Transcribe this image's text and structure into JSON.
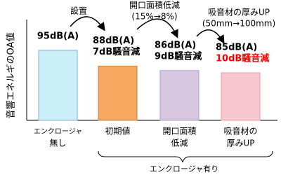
{
  "chart_data": {
    "type": "bar",
    "ylabel": "音響エネルギのOA値",
    "categories": [
      [
        "エンクロージャ",
        "無し"
      ],
      [
        "初期値"
      ],
      [
        "開口面積",
        "低減"
      ],
      [
        "吸音材の",
        "厚みUP"
      ]
    ],
    "values": [
      95,
      88,
      86,
      85
    ],
    "value_labels": [
      "95dB(A)",
      "88dB(A)",
      "86dB(A)",
      "85dB(A)"
    ],
    "reduction_labels": [
      null,
      "7dB騒音減",
      "9dB騒音減",
      "10dB騒音減"
    ],
    "reduction_colors": [
      null,
      "#000000",
      "#000000",
      "#ff0000"
    ],
    "colors": [
      "#ccf0f8",
      "#f8a860",
      "#d6c6e0",
      "#f8c8d0"
    ],
    "edge_colors": [
      "#7fb0d8",
      "#c88040",
      "#b0a0c0",
      "#e0a0a8"
    ],
    "annotations": [
      [
        "設置"
      ],
      [
        "開口面積低減",
        "(15%→8%)"
      ],
      [
        "吸音材の厚みUP",
        "(50mm→100mm)"
      ]
    ],
    "group_label": "エンクロージャ有り"
  }
}
